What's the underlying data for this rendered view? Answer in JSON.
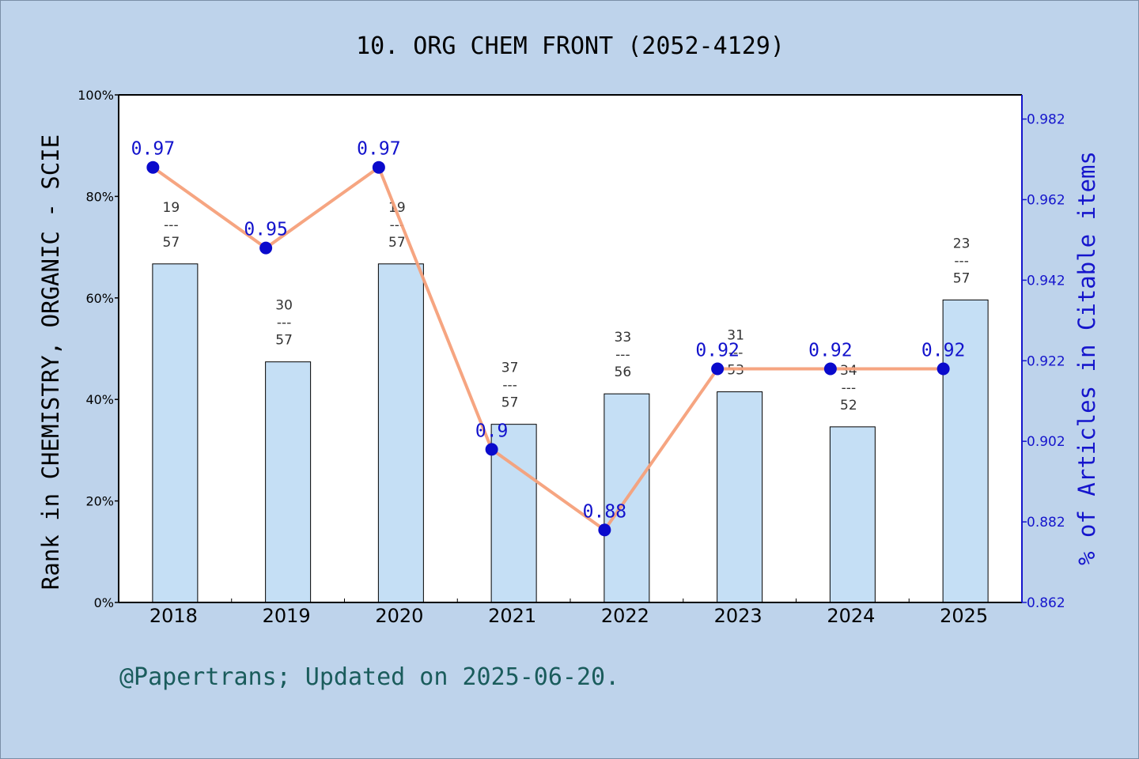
{
  "title": "10. ORG CHEM FRONT (2052-4129)",
  "footer": "@Papertrans; Updated on 2025-06-20.",
  "colors": {
    "background": "#bed3eb",
    "plot_background": "#ffffff",
    "bar_fill": "#c5dff5",
    "line": "#f5a07a",
    "marker": "#0a0acc",
    "right_axis": "#1515cc",
    "footer_text": "#1a5c5c"
  },
  "chart_data": {
    "type": "bar",
    "categories": [
      "2018",
      "2019",
      "2020",
      "2021",
      "2022",
      "2023",
      "2024",
      "2025"
    ],
    "ylabel": "Rank in CHEMISTRY, ORGANIC - SCIE",
    "y2label": "% of Articles in Citable items",
    "ylim": [
      0,
      100
    ],
    "y_ticks": [
      "0%",
      "20%",
      "40%",
      "60%",
      "80%",
      "100%"
    ],
    "y2lim": [
      0.862,
      0.988
    ],
    "y2_ticks": [
      "0.862",
      "0.882",
      "0.902",
      "0.922",
      "0.942",
      "0.962",
      "0.982"
    ],
    "bars": {
      "values": [
        66.7,
        47.4,
        66.7,
        35.1,
        41.1,
        41.5,
        34.6,
        59.6
      ],
      "labels": [
        {
          "rank": "19",
          "sep": "---",
          "total": "57"
        },
        {
          "rank": "30",
          "sep": "---",
          "total": "57"
        },
        {
          "rank": "19",
          "sep": "---",
          "total": "57"
        },
        {
          "rank": "37",
          "sep": "---",
          "total": "57"
        },
        {
          "rank": "33",
          "sep": "---",
          "total": "56"
        },
        {
          "rank": "31",
          "sep": "---",
          "total": "53"
        },
        {
          "rank": "34",
          "sep": "---",
          "total": "52"
        },
        {
          "rank": "23",
          "sep": "---",
          "total": "57"
        }
      ]
    },
    "line": {
      "values": [
        0.97,
        0.95,
        0.97,
        0.9,
        0.88,
        0.92,
        0.92,
        0.92
      ],
      "labels": [
        "0.97",
        "0.95",
        "0.97",
        "0.9",
        "0.88",
        "0.92",
        "0.92",
        "0.92"
      ]
    },
    "grid": false,
    "legend": "none"
  }
}
